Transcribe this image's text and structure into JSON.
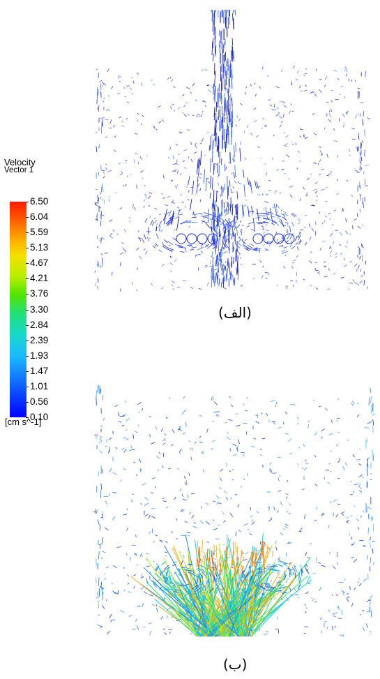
{
  "legend": {
    "title_line1": "Velocity",
    "title_line2": "Vector 1",
    "labels": [
      "6.50",
      "6.04",
      "5.59",
      "5.13",
      "4.67",
      "4.21",
      "3.76",
      "3.30",
      "2.84",
      "2.39",
      "1.93",
      "1.47",
      "1.01",
      "0.56",
      "0.10"
    ],
    "unit": "[cm s^-1]"
  },
  "panels": {
    "a": {
      "caption": "(الف)"
    },
    "b": {
      "caption": "(ب)"
    }
  }
}
